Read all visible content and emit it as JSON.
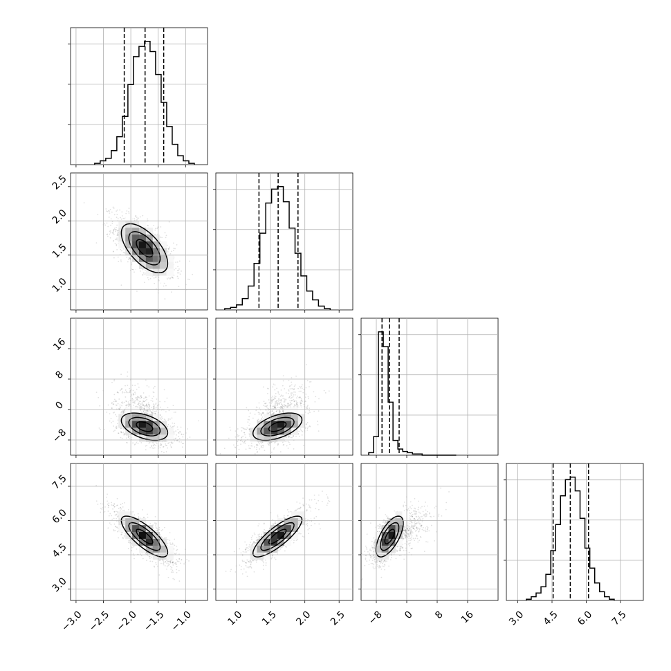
{
  "chart_data": {
    "type": "corner",
    "parameters": [
      {
        "range": [
          -3.1,
          -0.6
        ],
        "ticks": [
          -3.0,
          -2.5,
          -2.0,
          -1.5,
          -1.0
        ],
        "tick_labels": [
          "−3.0",
          "−2.5",
          "−2.0",
          "−1.5",
          "−1.0"
        ],
        "median": -1.75,
        "sigma": 0.26,
        "quantiles": [
          -2.12,
          -1.74,
          -1.4
        ],
        "hist_counts": [
          0.01,
          0.03,
          0.05,
          0.11,
          0.22,
          0.38,
          0.63,
          0.85,
          0.93,
          0.97,
          0.89,
          0.71,
          0.49,
          0.3,
          0.16,
          0.07,
          0.03,
          0.01
        ]
      },
      {
        "range": [
          0.7,
          2.7
        ],
        "ticks": [
          1.0,
          1.5,
          2.0,
          2.5
        ],
        "tick_labels": [
          "1.0",
          "1.5",
          "2.0",
          "2.5"
        ],
        "median": 1.6,
        "sigma": 0.22,
        "quantiles": [
          1.33,
          1.61,
          1.9
        ],
        "hist_counts": [
          0.01,
          0.02,
          0.04,
          0.09,
          0.19,
          0.37,
          0.61,
          0.85,
          0.96,
          0.98,
          0.86,
          0.65,
          0.45,
          0.27,
          0.15,
          0.08,
          0.03,
          0.01
        ]
      },
      {
        "range": [
          -12,
          24
        ],
        "ticks": [
          -8,
          0,
          8,
          16
        ],
        "tick_labels": [
          "−8",
          "0",
          "8",
          "16"
        ],
        "median": -4.5,
        "sigma": 2.2,
        "quantiles": [
          -6.5,
          -4.5,
          -2.0
        ],
        "hist_counts": [
          0.02,
          0.15,
          1.0,
          0.88,
          0.43,
          0.12,
          0.05,
          0.03,
          0.02,
          0.01,
          0.01,
          0.0,
          0.0,
          0.0,
          0.0,
          0.0,
          0.0,
          0.0
        ]
      },
      {
        "range": [
          2.5,
          8.5
        ],
        "ticks": [
          3.0,
          4.5,
          6.0,
          7.5
        ],
        "tick_labels": [
          "3.0",
          "4.5",
          "6.0",
          "7.5"
        ],
        "median": 5.3,
        "sigma": 0.55,
        "quantiles": [
          4.55,
          5.3,
          6.1
        ],
        "hist_counts": [
          0.01,
          0.03,
          0.06,
          0.11,
          0.21,
          0.4,
          0.61,
          0.84,
          0.97,
          0.99,
          0.88,
          0.66,
          0.42,
          0.26,
          0.14,
          0.07,
          0.03,
          0.01
        ]
      }
    ],
    "correlations": {
      "1-0": -0.62,
      "2-0": -0.45,
      "2-1": 0.5,
      "3-0": -0.78,
      "3-1": 0.82,
      "3-2": 0.65
    },
    "grid": true,
    "contour_levels": 3,
    "colors": {
      "line": "#000000",
      "grid": "#b0b0b0",
      "scatter": "#000000"
    }
  }
}
